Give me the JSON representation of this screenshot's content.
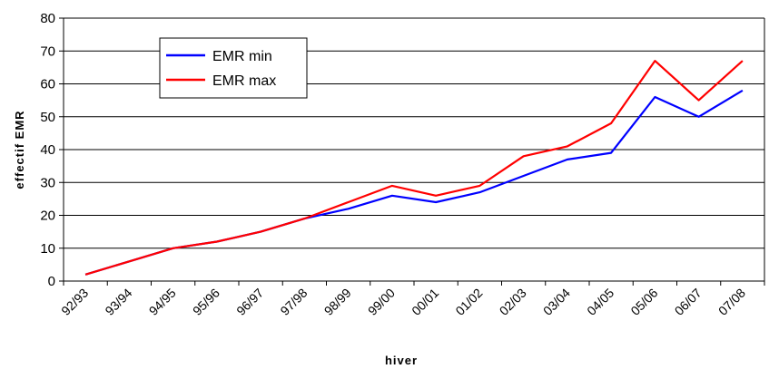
{
  "chart_data": {
    "type": "line",
    "categories": [
      "92/93",
      "93/94",
      "94/95",
      "95/96",
      "96/97",
      "97/98",
      "98/99",
      "99/00",
      "00/01",
      "01/02",
      "02/03",
      "03/04",
      "04/05",
      "05/06",
      "06/07",
      "07/08"
    ],
    "series": [
      {
        "name": "EMR min",
        "color": "#0000ff",
        "values": [
          2,
          6,
          10,
          12,
          15,
          19,
          22,
          26,
          24,
          27,
          32,
          37,
          39,
          56,
          50,
          58
        ]
      },
      {
        "name": "EMR max",
        "color": "#ff0000",
        "values": [
          2,
          6,
          10,
          12,
          15,
          19,
          24,
          29,
          26,
          29,
          38,
          41,
          48,
          67,
          55,
          67
        ]
      }
    ],
    "xlabel": "hiver",
    "ylabel": "effectif EMR",
    "ylim": [
      0,
      80
    ],
    "yticks": [
      0,
      10,
      20,
      30,
      40,
      50,
      60,
      70,
      80
    ],
    "grid": "horizontal",
    "legend": "top-left"
  }
}
